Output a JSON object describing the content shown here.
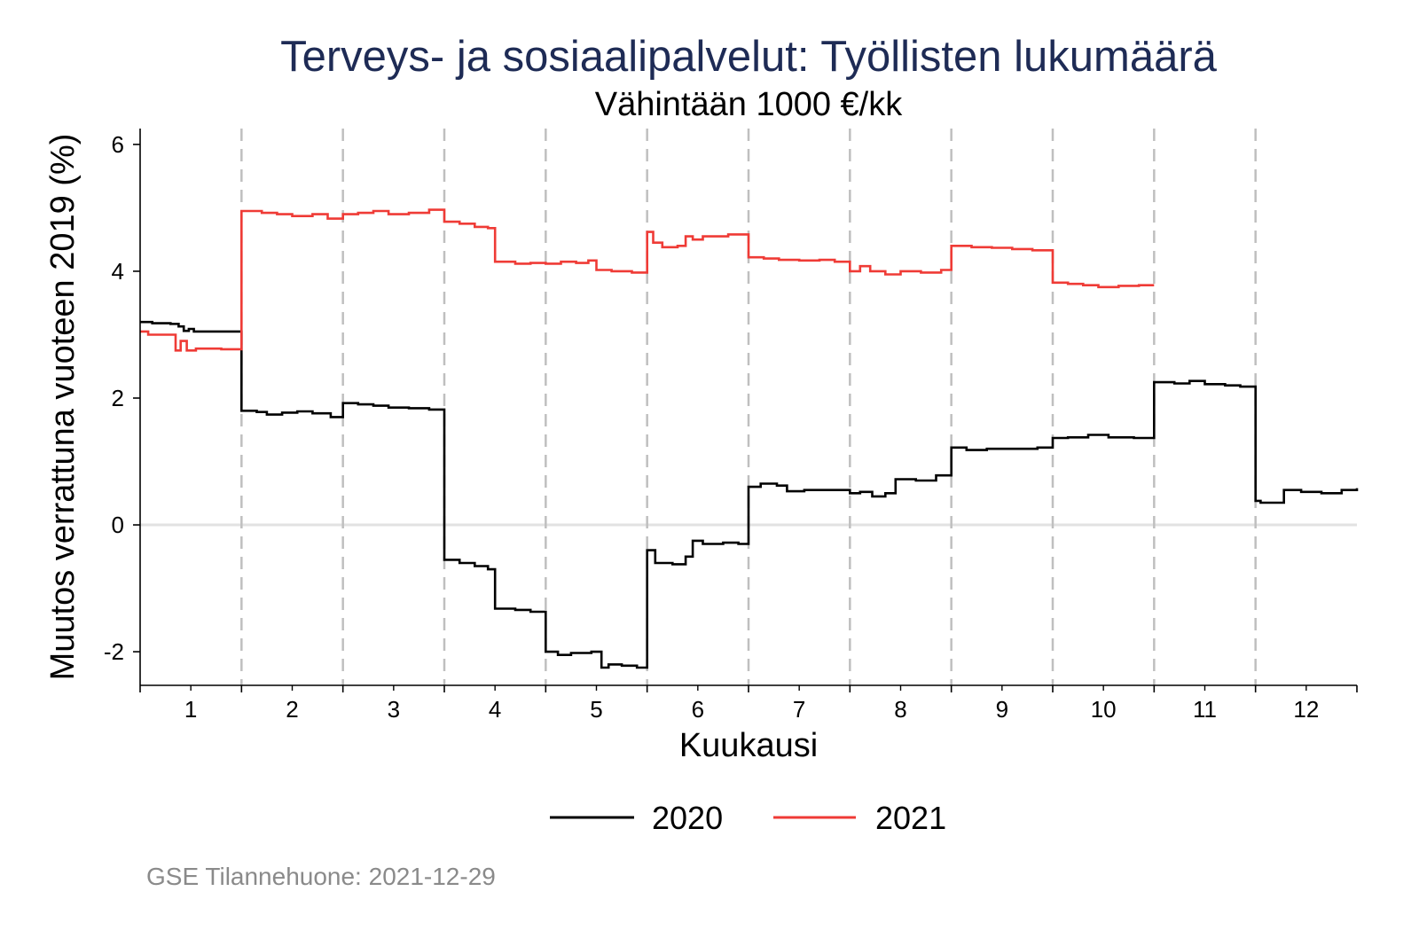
{
  "chart_data": {
    "type": "line",
    "line_style": "step",
    "title": "Terveys- ja sosiaalipalvelut: Työllisten lukumäärä",
    "subtitle": "Vähintään 1000 €/kk",
    "xlabel": "Kuukausi",
    "ylabel": "Muutos verrattuna vuoteen 2019 (%)",
    "xticks": [
      "1",
      "2",
      "3",
      "4",
      "5",
      "6",
      "7",
      "8",
      "9",
      "10",
      "11",
      "12"
    ],
    "yticks": [
      6,
      4,
      2,
      0,
      -2
    ],
    "xlim": [
      0.5,
      12.5
    ],
    "ylim": [
      -2.53,
      6.25
    ],
    "x_dividers": [
      1.5,
      2.5,
      3.5,
      4.5,
      5.5,
      6.5,
      7.5,
      8.5,
      9.5,
      10.5,
      11.5
    ],
    "reference_line_y": 0,
    "grid": false,
    "legend_position": "bottom",
    "series": [
      {
        "name": "2020",
        "color": "#000000",
        "points": [
          [
            0.5,
            3.2
          ],
          [
            0.62,
            3.18
          ],
          [
            0.8,
            3.17
          ],
          [
            0.88,
            3.13
          ],
          [
            0.93,
            3.06
          ],
          [
            0.98,
            3.09
          ],
          [
            1.03,
            3.05
          ],
          [
            1.2,
            3.05
          ],
          [
            1.5,
            1.8
          ],
          [
            1.65,
            1.78
          ],
          [
            1.75,
            1.74
          ],
          [
            1.9,
            1.77
          ],
          [
            2.05,
            1.79
          ],
          [
            2.2,
            1.76
          ],
          [
            2.38,
            1.7
          ],
          [
            2.5,
            1.92
          ],
          [
            2.65,
            1.9
          ],
          [
            2.8,
            1.88
          ],
          [
            2.95,
            1.85
          ],
          [
            3.15,
            1.84
          ],
          [
            3.35,
            1.82
          ],
          [
            3.5,
            -0.55
          ],
          [
            3.65,
            -0.6
          ],
          [
            3.8,
            -0.65
          ],
          [
            3.93,
            -0.7
          ],
          [
            4.0,
            -1.32
          ],
          [
            4.2,
            -1.34
          ],
          [
            4.35,
            -1.37
          ],
          [
            4.5,
            -2.0
          ],
          [
            4.62,
            -2.05
          ],
          [
            4.75,
            -2.02
          ],
          [
            4.95,
            -2.0
          ],
          [
            5.05,
            -2.25
          ],
          [
            5.12,
            -2.2
          ],
          [
            5.25,
            -2.22
          ],
          [
            5.4,
            -2.25
          ],
          [
            5.5,
            -0.4
          ],
          [
            5.58,
            -0.6
          ],
          [
            5.75,
            -0.62
          ],
          [
            5.88,
            -0.5
          ],
          [
            5.95,
            -0.25
          ],
          [
            6.05,
            -0.3
          ],
          [
            6.25,
            -0.28
          ],
          [
            6.4,
            -0.3
          ],
          [
            6.5,
            0.6
          ],
          [
            6.62,
            0.65
          ],
          [
            6.78,
            0.62
          ],
          [
            6.88,
            0.53
          ],
          [
            7.05,
            0.55
          ],
          [
            7.3,
            0.55
          ],
          [
            7.5,
            0.5
          ],
          [
            7.6,
            0.52
          ],
          [
            7.72,
            0.45
          ],
          [
            7.85,
            0.5
          ],
          [
            7.95,
            0.72
          ],
          [
            8.15,
            0.7
          ],
          [
            8.35,
            0.78
          ],
          [
            8.5,
            1.22
          ],
          [
            8.65,
            1.18
          ],
          [
            8.85,
            1.2
          ],
          [
            9.1,
            1.2
          ],
          [
            9.35,
            1.22
          ],
          [
            9.5,
            1.37
          ],
          [
            9.65,
            1.38
          ],
          [
            9.85,
            1.42
          ],
          [
            10.05,
            1.38
          ],
          [
            10.3,
            1.37
          ],
          [
            10.5,
            2.25
          ],
          [
            10.7,
            2.23
          ],
          [
            10.85,
            2.27
          ],
          [
            11.0,
            2.22
          ],
          [
            11.2,
            2.2
          ],
          [
            11.35,
            2.18
          ],
          [
            11.5,
            0.38
          ],
          [
            11.55,
            0.35
          ],
          [
            11.78,
            0.55
          ],
          [
            11.95,
            0.52
          ],
          [
            12.15,
            0.5
          ],
          [
            12.35,
            0.55
          ],
          [
            12.5,
            0.58
          ]
        ]
      },
      {
        "name": "2021",
        "color": "#ef3b36",
        "points": [
          [
            0.5,
            3.05
          ],
          [
            0.58,
            3.0
          ],
          [
            0.85,
            2.75
          ],
          [
            0.9,
            2.9
          ],
          [
            0.96,
            2.75
          ],
          [
            1.05,
            2.78
          ],
          [
            1.3,
            2.77
          ],
          [
            1.5,
            4.95
          ],
          [
            1.7,
            4.92
          ],
          [
            1.85,
            4.9
          ],
          [
            2.0,
            4.87
          ],
          [
            2.2,
            4.9
          ],
          [
            2.35,
            4.83
          ],
          [
            2.5,
            4.9
          ],
          [
            2.65,
            4.92
          ],
          [
            2.8,
            4.95
          ],
          [
            2.95,
            4.9
          ],
          [
            3.15,
            4.92
          ],
          [
            3.35,
            4.97
          ],
          [
            3.5,
            4.78
          ],
          [
            3.65,
            4.75
          ],
          [
            3.8,
            4.7
          ],
          [
            3.93,
            4.68
          ],
          [
            4.0,
            4.15
          ],
          [
            4.2,
            4.12
          ],
          [
            4.35,
            4.13
          ],
          [
            4.5,
            4.12
          ],
          [
            4.65,
            4.15
          ],
          [
            4.8,
            4.13
          ],
          [
            4.92,
            4.17
          ],
          [
            5.0,
            4.02
          ],
          [
            5.15,
            4.0
          ],
          [
            5.35,
            3.98
          ],
          [
            5.5,
            4.62
          ],
          [
            5.56,
            4.45
          ],
          [
            5.65,
            4.38
          ],
          [
            5.8,
            4.4
          ],
          [
            5.88,
            4.55
          ],
          [
            5.95,
            4.5
          ],
          [
            6.05,
            4.55
          ],
          [
            6.3,
            4.58
          ],
          [
            6.5,
            4.22
          ],
          [
            6.65,
            4.2
          ],
          [
            6.8,
            4.18
          ],
          [
            7.0,
            4.17
          ],
          [
            7.2,
            4.18
          ],
          [
            7.35,
            4.15
          ],
          [
            7.5,
            4.0
          ],
          [
            7.6,
            4.08
          ],
          [
            7.7,
            4.0
          ],
          [
            7.85,
            3.95
          ],
          [
            8.0,
            4.0
          ],
          [
            8.2,
            3.98
          ],
          [
            8.4,
            4.02
          ],
          [
            8.5,
            4.4
          ],
          [
            8.7,
            4.38
          ],
          [
            8.9,
            4.37
          ],
          [
            9.1,
            4.35
          ],
          [
            9.3,
            4.33
          ],
          [
            9.5,
            3.82
          ],
          [
            9.65,
            3.8
          ],
          [
            9.8,
            3.78
          ],
          [
            9.95,
            3.75
          ],
          [
            10.15,
            3.77
          ],
          [
            10.35,
            3.78
          ],
          [
            10.5,
            3.78
          ]
        ]
      }
    ]
  },
  "footer": "GSE Tilannehuone: 2021-12-29"
}
